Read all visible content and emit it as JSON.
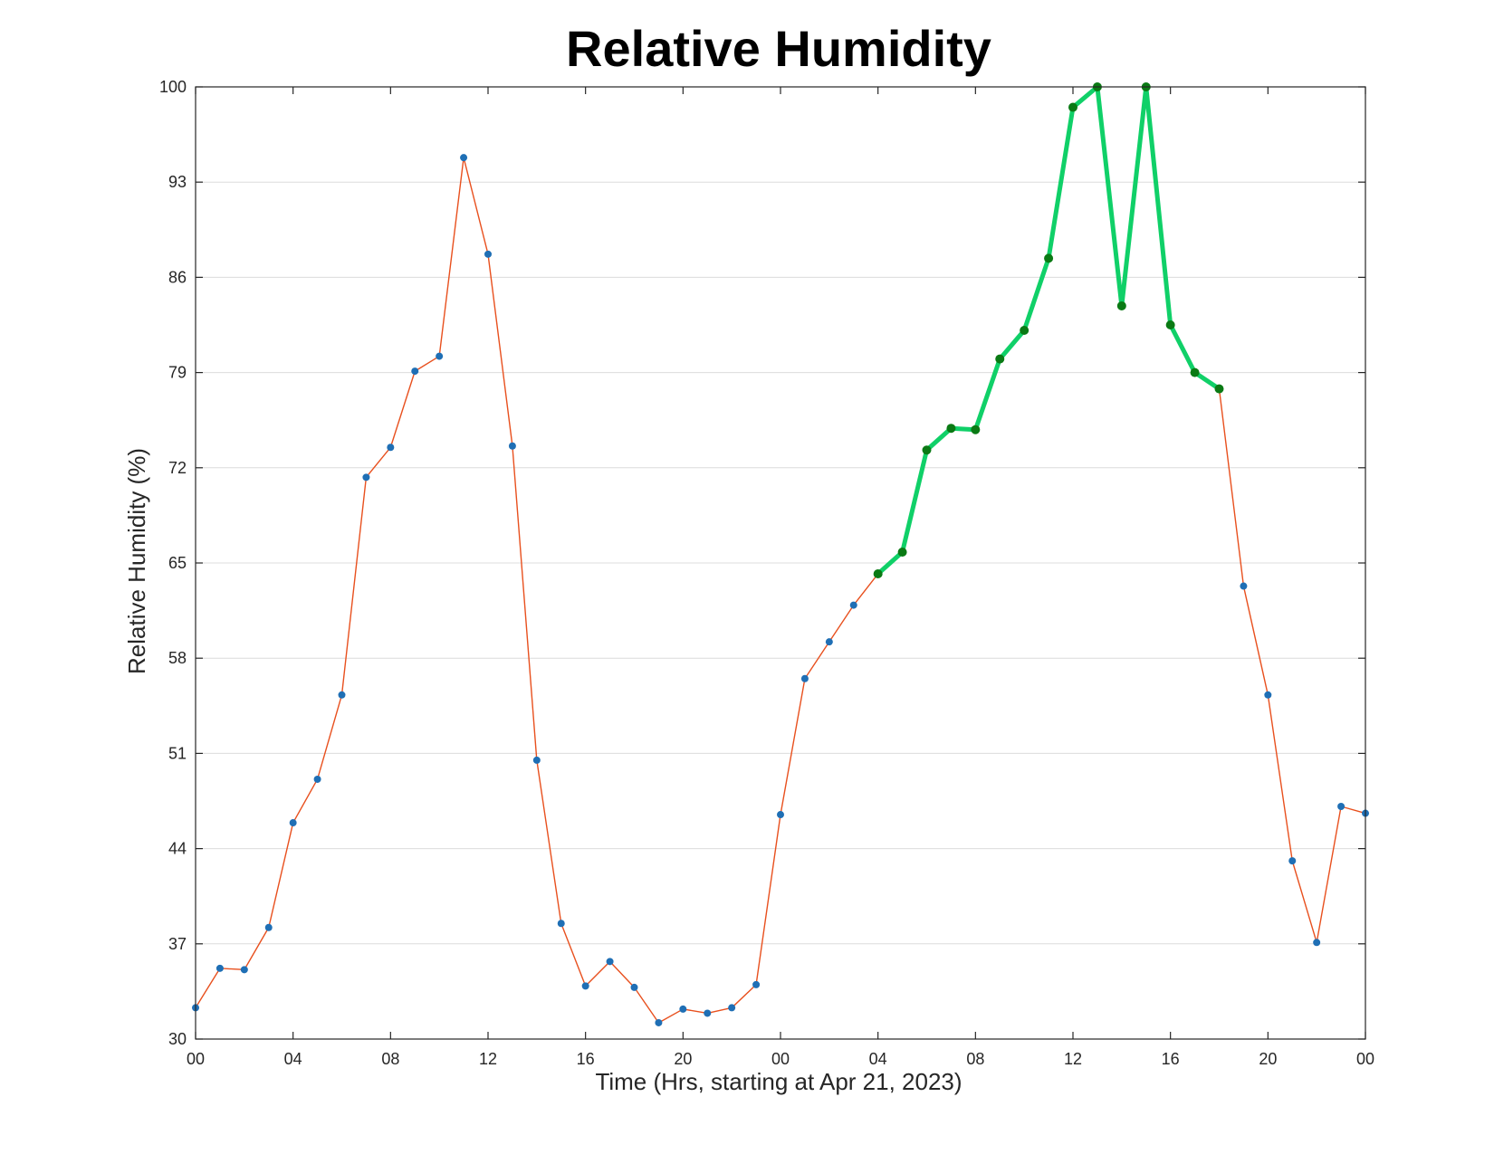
{
  "chart_data": {
    "type": "line",
    "title": "Relative Humidity",
    "xlabel": "Time (Hrs, starting at Apr 21, 2023)",
    "ylabel": "Relative Humidity (%)",
    "xlim": [
      0,
      48
    ],
    "ylim": [
      30,
      100
    ],
    "yticks": [
      30,
      37,
      44,
      51,
      58,
      65,
      72,
      79,
      86,
      93,
      100
    ],
    "xticks": [
      0,
      4,
      8,
      12,
      16,
      20,
      24,
      28,
      32,
      36,
      40,
      44,
      48
    ],
    "xtick_labels": [
      "00",
      "04",
      "08",
      "12",
      "16",
      "20",
      "00",
      "04",
      "08",
      "12",
      "16",
      "20",
      "00"
    ],
    "grid": "horizontal",
    "series": [
      {
        "line_color": "#e8501e",
        "marker_color": "#1f6fb5",
        "x": [
          0,
          1,
          2,
          3,
          4,
          5,
          6,
          7,
          8,
          9,
          10,
          11,
          12,
          13,
          14,
          15,
          16,
          17,
          18,
          19,
          20,
          21,
          22,
          23,
          24,
          25,
          26,
          27,
          28,
          29,
          30,
          31,
          32,
          33,
          34,
          35,
          36,
          37,
          38,
          39,
          40,
          41,
          42,
          43,
          44,
          45,
          46,
          47,
          48
        ],
        "values": [
          32.3,
          35.2,
          35.1,
          38.2,
          45.9,
          49.1,
          55.3,
          71.3,
          73.5,
          79.1,
          80.2,
          94.8,
          87.7,
          73.6,
          50.5,
          38.5,
          33.9,
          35.7,
          33.8,
          31.2,
          32.2,
          31.9,
          32.3,
          34.0,
          46.5,
          56.5,
          59.2,
          61.9,
          64.2,
          65.8,
          73.3,
          74.9,
          74.8,
          80.0,
          82.1,
          87.4,
          98.5,
          100.0,
          83.9,
          100.0,
          82.5,
          79.0,
          77.8,
          63.3,
          55.3,
          43.1,
          37.1,
          47.1,
          46.6
        ]
      },
      {
        "line_color": "#10d068",
        "marker_color": "#0a7a14",
        "x": [
          28,
          29,
          30,
          31,
          32,
          33,
          34,
          35,
          36,
          37,
          38,
          39,
          40,
          41,
          42
        ],
        "values": [
          64.2,
          65.8,
          73.3,
          74.9,
          74.8,
          80.0,
          82.1,
          87.4,
          98.5,
          100.0,
          83.9,
          100.0,
          82.5,
          79.0,
          77.8
        ]
      }
    ]
  }
}
